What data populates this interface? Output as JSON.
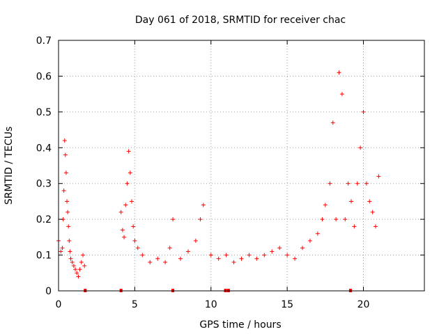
{
  "chart_data": {
    "type": "scatter",
    "title": "Day 061 of 2018, SRMTID for receiver chac",
    "xlabel": "GPS time / hours",
    "ylabel": "SRMTID / TECUs",
    "xlim": [
      0,
      24
    ],
    "ylim": [
      0,
      0.7
    ],
    "xticks": [
      0,
      5,
      10,
      15,
      20
    ],
    "yticks": [
      0,
      0.1,
      0.2,
      0.3,
      0.4,
      0.5,
      0.6,
      0.7
    ],
    "grid": true,
    "marker": "+",
    "color": "#ff0000",
    "gap_markers_x": [
      1.75,
      4.1,
      7.5,
      10.95,
      11.15,
      19.15
    ],
    "series": [
      {
        "name": "SRMTID",
        "x": [
          0.0,
          0.15,
          0.25,
          0.3,
          0.35,
          0.4,
          0.45,
          0.5,
          0.55,
          0.6,
          0.65,
          0.7,
          0.75,
          0.8,
          0.9,
          1.0,
          1.1,
          1.2,
          1.3,
          1.4,
          1.5,
          1.6,
          1.7,
          4.1,
          4.2,
          4.3,
          4.4,
          4.5,
          4.6,
          4.7,
          4.8,
          4.9,
          5.0,
          5.2,
          5.5,
          6.0,
          6.5,
          7.0,
          7.3,
          7.5,
          8.0,
          8.5,
          9.0,
          9.3,
          9.5,
          10.0,
          10.5,
          11.0,
          11.5,
          12.0,
          12.5,
          13.0,
          13.5,
          14.0,
          14.5,
          15.0,
          15.5,
          16.0,
          16.5,
          17.0,
          17.3,
          17.5,
          17.8,
          18.0,
          18.2,
          18.4,
          18.6,
          18.8,
          19.0,
          19.2,
          19.4,
          19.6,
          19.8,
          20.0,
          20.2,
          20.4,
          20.6,
          20.8,
          21.0
        ],
        "y": [
          0.14,
          0.11,
          0.12,
          0.2,
          0.28,
          0.42,
          0.38,
          0.33,
          0.25,
          0.22,
          0.18,
          0.14,
          0.11,
          0.09,
          0.08,
          0.07,
          0.06,
          0.05,
          0.04,
          0.06,
          0.08,
          0.1,
          0.07,
          0.22,
          0.17,
          0.15,
          0.24,
          0.3,
          0.39,
          0.33,
          0.25,
          0.18,
          0.14,
          0.12,
          0.1,
          0.08,
          0.09,
          0.08,
          0.12,
          0.2,
          0.09,
          0.11,
          0.14,
          0.2,
          0.24,
          0.1,
          0.09,
          0.1,
          0.08,
          0.09,
          0.1,
          0.09,
          0.1,
          0.11,
          0.12,
          0.1,
          0.09,
          0.12,
          0.14,
          0.16,
          0.2,
          0.24,
          0.3,
          0.47,
          0.2,
          0.61,
          0.55,
          0.2,
          0.3,
          0.25,
          0.18,
          0.3,
          0.4,
          0.5,
          0.3,
          0.25,
          0.22,
          0.18,
          0.32
        ]
      }
    ]
  }
}
